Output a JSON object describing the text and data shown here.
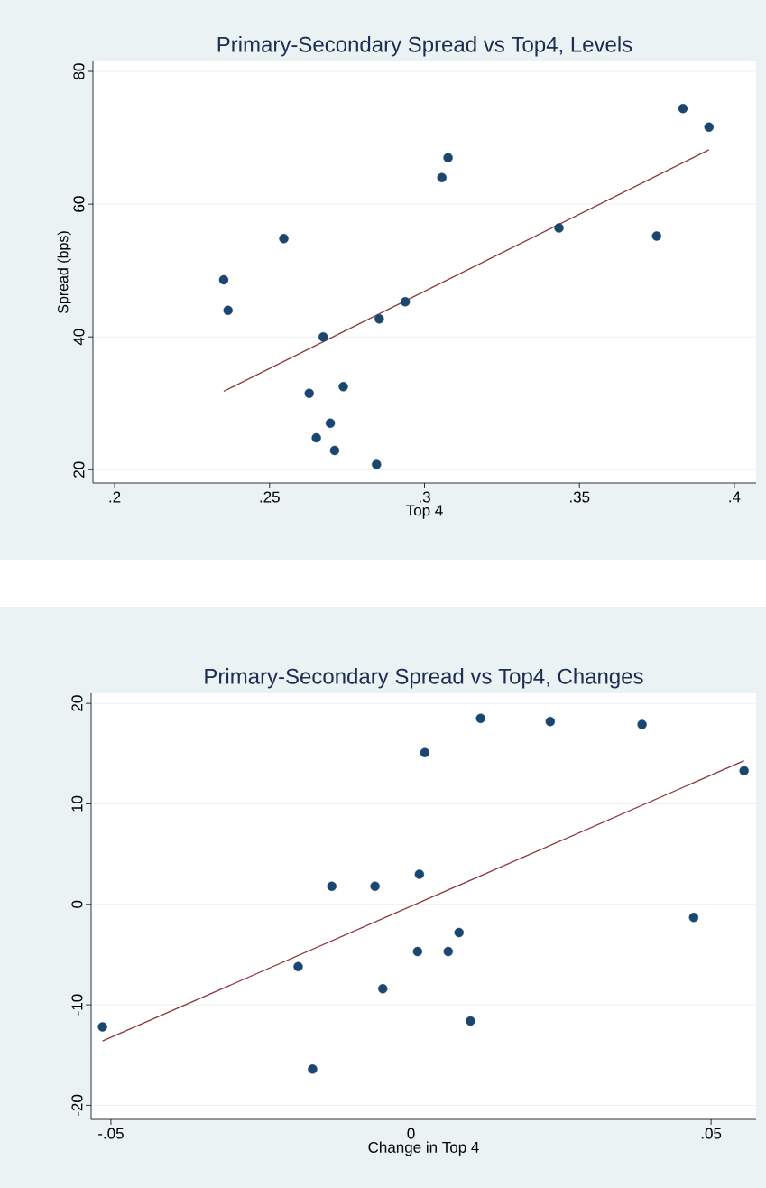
{
  "chart_data": [
    {
      "type": "scatter",
      "title": "Primary-Secondary Spread vs Top4, Levels",
      "xlabel": "Top 4",
      "ylabel": "Spread (bps)",
      "xlim": [
        0.193,
        0.407
      ],
      "ylim": [
        18,
        81.5
      ],
      "xticks": [
        {
          "value": 0.2,
          "label": ".2"
        },
        {
          "value": 0.25,
          "label": ".25"
        },
        {
          "value": 0.3,
          "label": ".3"
        },
        {
          "value": 0.35,
          "label": ".35"
        },
        {
          "value": 0.4,
          "label": ".4"
        }
      ],
      "yticks": [
        20,
        40,
        60,
        80
      ],
      "grid": "y",
      "legend": false,
      "series": [
        {
          "type": "scatter",
          "marker": "circle",
          "color": "#1a476f",
          "x": [
            0.2352,
            0.2366,
            0.2546,
            0.2673,
            0.2628,
            0.2738,
            0.2696,
            0.2651,
            0.271,
            0.2845,
            0.2854,
            0.2938,
            0.3056,
            0.3076,
            0.3434,
            0.3749,
            0.3834,
            0.3918
          ],
          "values": [
            48.6,
            44.0,
            54.8,
            40.0,
            31.5,
            32.5,
            27.0,
            24.8,
            22.9,
            20.8,
            42.7,
            45.3,
            64.0,
            67.0,
            56.4,
            55.2,
            74.4,
            71.6
          ]
        },
        {
          "type": "line",
          "color": "#90353b",
          "x": [
            0.2352,
            0.3918
          ],
          "values": [
            31.8,
            68.2
          ]
        }
      ]
    },
    {
      "type": "scatter",
      "title": "Primary-Secondary Spread vs Top4, Changes",
      "xlabel": "Change in Top 4",
      "xlim": [
        -0.0533,
        0.0575
      ],
      "ylim": [
        -21.4,
        21
      ],
      "xticks": [
        {
          "value": -0.05,
          "label": "-.05"
        },
        0,
        {
          "value": 0.05,
          "label": ".05"
        }
      ],
      "yticks": [
        -20,
        -10,
        0,
        10,
        20
      ],
      "grid": "y",
      "legend": false,
      "series": [
        {
          "type": "scatter",
          "marker": "circle",
          "color": "#1a476f",
          "x": [
            -0.0514,
            -0.0188,
            -0.0164,
            -0.0132,
            -0.006,
            -0.0047,
            0.0011,
            0.0014,
            0.0023,
            0.0062,
            0.008,
            0.0099,
            0.0116,
            0.0232,
            0.0385,
            0.0471,
            0.0555
          ],
          "values": [
            -12.2,
            -6.2,
            -16.4,
            1.8,
            1.8,
            -8.4,
            -4.7,
            3.0,
            15.1,
            -4.7,
            -2.8,
            -11.6,
            18.5,
            18.2,
            17.9,
            -1.3,
            13.3
          ]
        },
        {
          "type": "line",
          "color": "#90353b",
          "x": [
            -0.0514,
            0.0555
          ],
          "values": [
            -13.6,
            14.3
          ]
        }
      ]
    }
  ]
}
